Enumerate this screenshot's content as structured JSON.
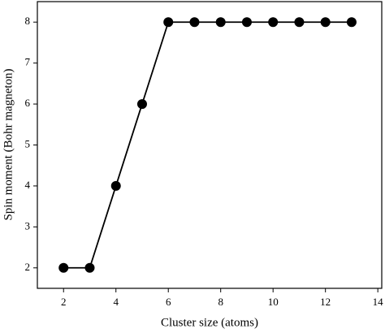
{
  "chart_data": {
    "type": "line",
    "x_label": "Cluster size (atoms)",
    "y_label": "Spin moment (Bohr magneton)",
    "x": [
      2,
      3,
      4,
      5,
      6,
      7,
      8,
      9,
      10,
      11,
      12,
      13
    ],
    "series": [
      {
        "color": "#000000",
        "values": [
          2,
          2,
          4,
          6,
          8,
          8,
          8,
          8,
          8,
          8,
          8,
          8
        ]
      }
    ],
    "xlim": [
      1,
      14.15
    ],
    "ylim": [
      1.5,
      8.5
    ],
    "xticks": [
      2,
      4,
      6,
      8,
      10,
      12,
      14
    ],
    "yticks": [
      2,
      3,
      4,
      5,
      6,
      7,
      8
    ],
    "grid": false
  }
}
